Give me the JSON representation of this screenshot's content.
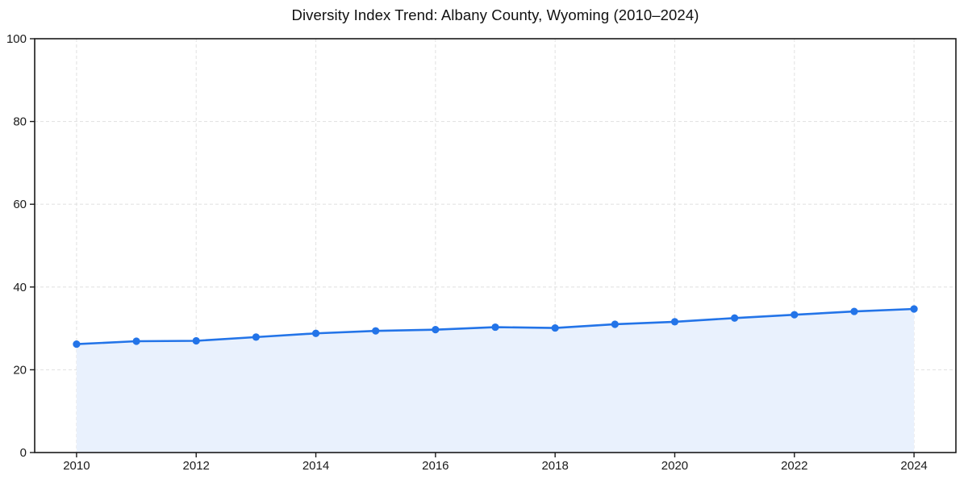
{
  "title": "Diversity Index Trend: Albany County, Wyoming (2010–2024)",
  "colors": {
    "line": "#2374e8",
    "marker": "#2374e8",
    "area_fill": "#e9f1fd",
    "grid": "#e3e3e3",
    "axis": "#1a1a1a",
    "tick_text": "#1a1a1a",
    "background": "#ffffff"
  },
  "chart_data": {
    "type": "line",
    "title": "Diversity Index Trend: Albany County, Wyoming (2010–2024)",
    "x": [
      2010,
      2011,
      2012,
      2013,
      2014,
      2015,
      2016,
      2017,
      2018,
      2019,
      2020,
      2021,
      2022,
      2023,
      2024
    ],
    "series": [
      {
        "name": "Diversity Index",
        "values": [
          26.2,
          26.9,
          27.0,
          27.9,
          28.8,
          29.4,
          29.7,
          30.3,
          30.1,
          31.0,
          31.6,
          32.5,
          33.3,
          34.1,
          34.7
        ]
      }
    ],
    "xticks": [
      2010,
      2012,
      2014,
      2016,
      2018,
      2020,
      2022,
      2024
    ],
    "yticks": [
      0,
      20,
      40,
      60,
      80,
      100
    ],
    "xlim": [
      2009.3,
      2024.7
    ],
    "ylim": [
      0,
      100
    ],
    "xlabel": "",
    "ylabel": "",
    "grid": true,
    "grid_style": "dashed",
    "legend": false,
    "marker": "circle",
    "area_fill": true
  }
}
